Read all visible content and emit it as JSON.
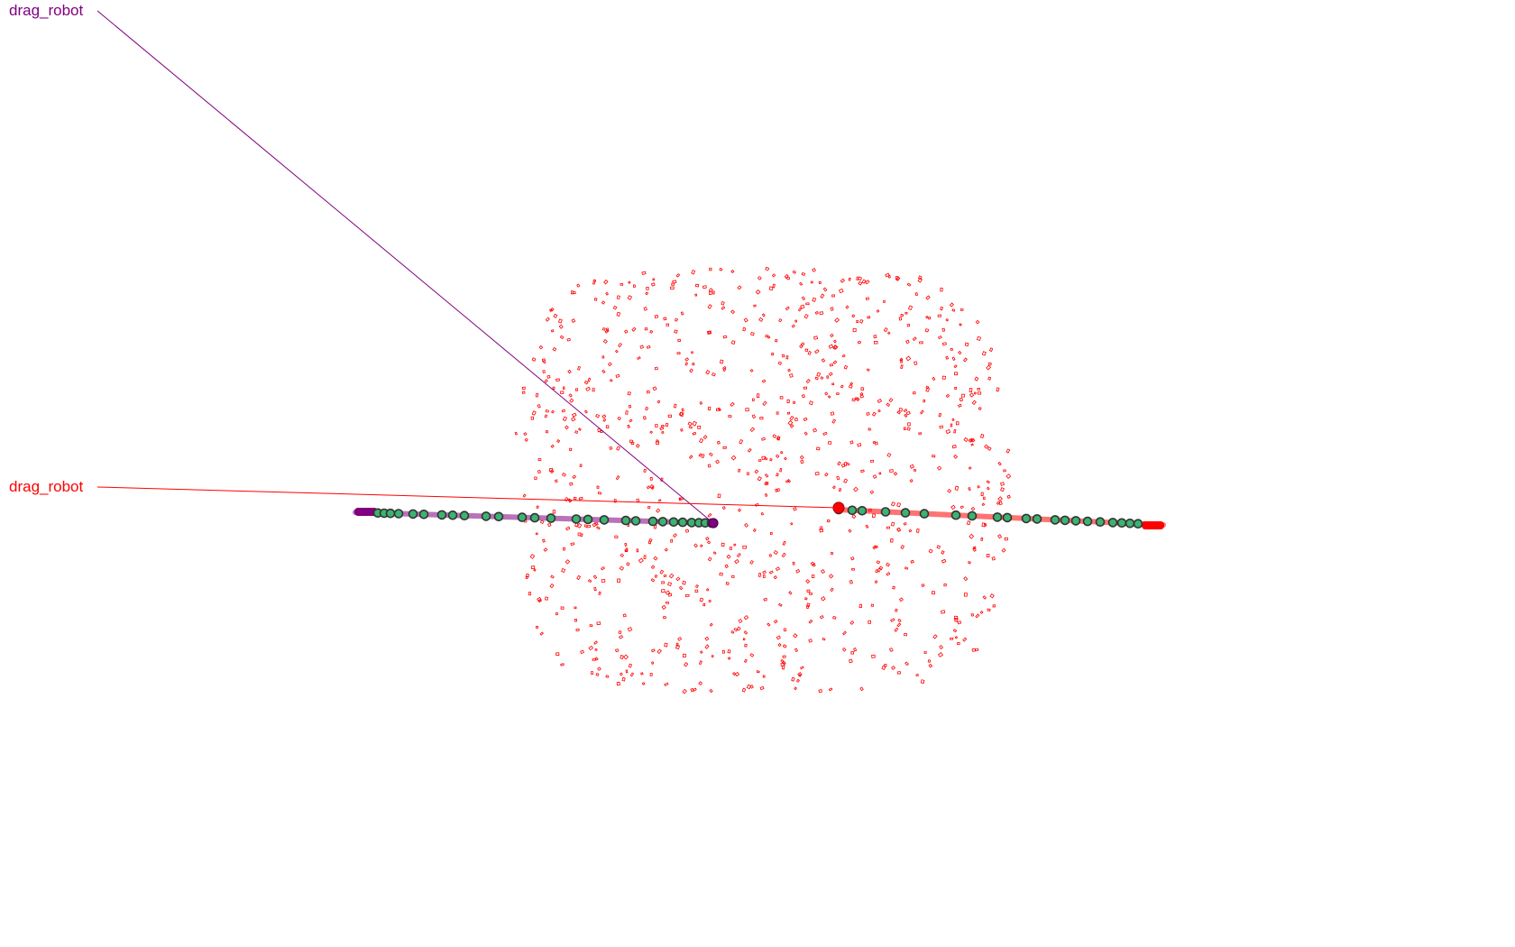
{
  "robots": [
    {
      "id": "purple",
      "label": "drag_robot",
      "color": "#800080"
    },
    {
      "id": "red",
      "label": "drag_robot",
      "color": "#ff0000"
    }
  ],
  "colors": {
    "particle": "#ff0000",
    "waypoint_fill": "#3cb371",
    "waypoint_ring": "#333333",
    "background": "#ffffff"
  }
}
